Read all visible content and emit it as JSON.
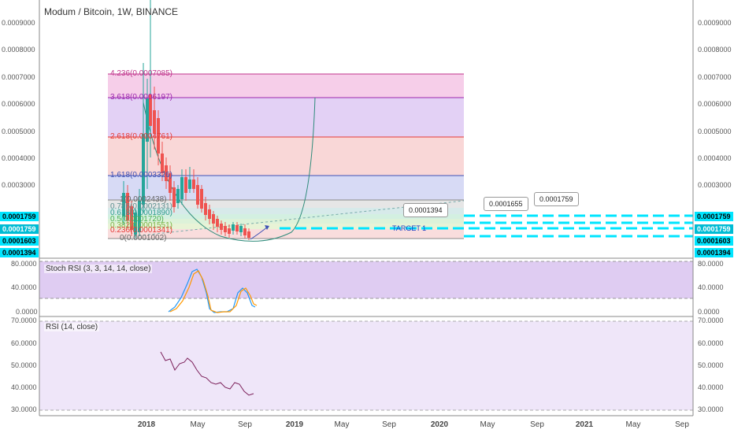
{
  "header": {
    "title": "Modum / Bitcoin, 1W, BINANCE"
  },
  "panels": {
    "stoch_label": "Stoch RSI (3, 3, 14, 14, close)",
    "rsi_label": "RSI (14, close)"
  },
  "price_axis": {
    "left": [
      "0.0009000",
      "0.0008000",
      "0.0007000",
      "0.0006000",
      "0.0005000",
      "0.0004000",
      "0.0003000"
    ],
    "right": [
      "0.0009000",
      "0.0008000",
      "0.0007000",
      "0.0006000",
      "0.0005000",
      "0.0004000",
      "0.0003000"
    ]
  },
  "badges": {
    "left": [
      "0.0001759",
      "0.0001759",
      "0.0001603",
      "0.0001394"
    ],
    "right": [
      "0.0001759",
      "0.0001759",
      "0.0001603",
      "0.0001394"
    ]
  },
  "stoch_axis": {
    "left": [
      "80.0000",
      "40.0000",
      "0.0000"
    ],
    "right": [
      "80.0000",
      "40.0000",
      "0.0000"
    ]
  },
  "rsi_axis": {
    "left": [
      "70.0000",
      "60.0000",
      "50.0000",
      "40.0000",
      "30.0000"
    ],
    "right": [
      "70.0000",
      "60.0000",
      "50.0000",
      "40.0000",
      "30.0000"
    ]
  },
  "fib_levels": [
    {
      "label": "4.236(0.0007085)",
      "color": "#c0348c"
    },
    {
      "label": "3.618(0.0006197)",
      "color": "#9c27b0"
    },
    {
      "label": "2.618(0.0004761)",
      "color": "#e53935"
    },
    {
      "label": "1.618(0.0003326)",
      "color": "#3f51b5"
    },
    {
      "label": "1(0.0002438)",
      "color": "#666666"
    },
    {
      "label": "0.786(0.0002131)",
      "color": "#5a8f8f"
    },
    {
      "label": "0.618(0.0001890)",
      "color": "#2e9c8c"
    },
    {
      "label": "0.5(0.0001720)",
      "color": "#4caf50"
    },
    {
      "label": "0.382(0.0001551)",
      "color": "#7cb342"
    },
    {
      "label": "0.236(0.0001341)",
      "color": "#e53935"
    },
    {
      "label": "0(0.0001002)",
      "color": "#666666"
    }
  ],
  "callouts": [
    "0.0001394",
    "0.0001655",
    "0.0001759"
  ],
  "annotation": "TARGET 1",
  "x_ticks": [
    "2018",
    "May",
    "Sep",
    "2019",
    "May",
    "Sep",
    "2020",
    "May",
    "Sep",
    "2021",
    "May",
    "Sep"
  ],
  "colors": {
    "accent": "#00e5ff",
    "up": "#26a69a",
    "down": "#ef5350",
    "stoch_bg": "#d9c3f0",
    "rsi_bg": "#efe6f9"
  }
}
